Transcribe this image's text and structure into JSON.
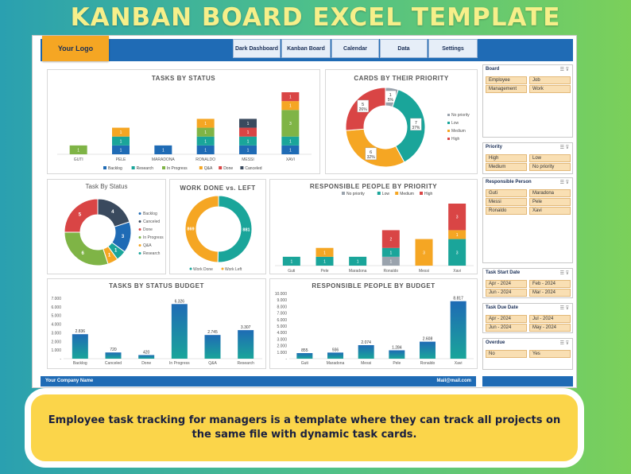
{
  "hero_title": "KANBAN BOARD EXCEL TEMPLATE",
  "logo": "Your Logo",
  "nav": [
    "Dark Dashboard",
    "Kanban Board",
    "Calendar",
    "Data",
    "Settings"
  ],
  "footer": {
    "company": "Your Company Name",
    "mail": "Mail@mail.com"
  },
  "caption": "Employee task tracking for managers is a template where they can track all projects on the same file with dynamic task cards.",
  "colors": {
    "Backlog": "#1f6bb5",
    "Research": "#1aa59a",
    "In Progress": "#7fb446",
    "Q&A": "#f5a623",
    "Done": "#d94545",
    "Canceled": "#3a4a5e",
    "No priority": "#9aa3ad",
    "Low": "#1aa59a",
    "Medium": "#f5a623",
    "High": "#d94545"
  },
  "slicers": [
    {
      "title": "Board",
      "items": [
        "Employee",
        "Job",
        "Management",
        "Work"
      ]
    },
    {
      "title": "Priority",
      "items": [
        "High",
        "Low",
        "Medium",
        "No priority"
      ]
    },
    {
      "title": "Responsible Person",
      "items": [
        "Guti",
        "Maradona",
        "Messi",
        "Pele",
        "Ronaldo",
        "Xavi"
      ]
    },
    {
      "title": "Task Start Date",
      "items": [
        "Apr - 2024",
        "Feb - 2024",
        "Jun - 2024",
        "Mar - 2024"
      ]
    },
    {
      "title": "Task Due Date",
      "items": [
        "Apr - 2024",
        "Jul - 2024",
        "Jun - 2024",
        "May - 2024"
      ]
    },
    {
      "title": "Overdue",
      "items": [
        "No",
        "Yes"
      ]
    }
  ],
  "chart_data": [
    {
      "id": "tasks-by-status",
      "type": "bar",
      "stacked": true,
      "title": "TASKS BY STATUS",
      "categories": [
        "GUTI",
        "PELE",
        "MARADONA",
        "RONALDO",
        "MESSI",
        "XAVI"
      ],
      "series": [
        {
          "name": "Backlog",
          "values": [
            0,
            1,
            1,
            1,
            1,
            1
          ]
        },
        {
          "name": "Research",
          "values": [
            0,
            1,
            0,
            1,
            1,
            1
          ]
        },
        {
          "name": "In Progress",
          "values": [
            1,
            0,
            0,
            1,
            0,
            3
          ]
        },
        {
          "name": "Q&A",
          "values": [
            0,
            1,
            0,
            1,
            0,
            1
          ]
        },
        {
          "name": "Done",
          "values": [
            0,
            0,
            0,
            0,
            1,
            1
          ]
        },
        {
          "name": "Canceled",
          "values": [
            0,
            0,
            0,
            0,
            1,
            0
          ]
        }
      ],
      "legend": "bottom"
    },
    {
      "id": "cards-by-priority",
      "type": "pie",
      "donut": true,
      "title": "CARDS BY THEIR PRIORITY",
      "slices": [
        {
          "name": "No priority",
          "value": 1,
          "label": "1",
          "pct": "5%"
        },
        {
          "name": "Low",
          "value": 7,
          "label": "7",
          "pct": "37%"
        },
        {
          "name": "Medium",
          "value": 6,
          "label": "6",
          "pct": "32%"
        },
        {
          "name": "High",
          "value": 5,
          "label": "5",
          "pct": "26%"
        }
      ],
      "legend": "right"
    },
    {
      "id": "task-by-status-donut",
      "type": "pie",
      "donut": true,
      "title": "Task By Status",
      "slices": [
        {
          "name": "Backlog",
          "value": 3,
          "label": "3"
        },
        {
          "name": "Canceled",
          "value": 4,
          "label": "4"
        },
        {
          "name": "Done",
          "value": 5,
          "label": "5"
        },
        {
          "name": "In Progress",
          "value": 6,
          "label": "6"
        },
        {
          "name": "Q&A",
          "value": 1,
          "label": "1"
        },
        {
          "name": "Research",
          "value": 1,
          "label": "1"
        }
      ],
      "legend_items": [
        "Backlog",
        "Canceled",
        "Done",
        "In Progress",
        "Q&A",
        "Research"
      ],
      "legend": "right"
    },
    {
      "id": "work-done-vs-left",
      "type": "pie",
      "donut": true,
      "title": "WORK DONE vs. LEFT",
      "slices": [
        {
          "name": "Work Done",
          "value": 881,
          "label": "881"
        },
        {
          "name": "Work Left",
          "value": 869,
          "label": "869"
        }
      ],
      "colors": [
        "#1aa59a",
        "#f5a623"
      ],
      "legend": "bottom"
    },
    {
      "id": "responsible-by-priority",
      "type": "bar",
      "stacked": true,
      "title": "RESPONSIBLE PEOPLE BY PRIORITY",
      "categories": [
        "Guti",
        "Pele",
        "Maradona",
        "Ronaldo",
        "Messi",
        "Xavi"
      ],
      "series": [
        {
          "name": "No priority",
          "values": [
            0,
            0,
            0,
            1,
            0,
            0
          ]
        },
        {
          "name": "Low",
          "values": [
            1,
            1,
            1,
            1,
            0,
            3
          ]
        },
        {
          "name": "Medium",
          "values": [
            0,
            1,
            0,
            0,
            3,
            1
          ]
        },
        {
          "name": "High",
          "values": [
            0,
            0,
            0,
            2,
            0,
            3
          ]
        }
      ],
      "legend": "top"
    },
    {
      "id": "tasks-by-status-budget",
      "type": "bar",
      "title": "TASKS BY STATUS BUDGET",
      "categories": [
        "Backlog",
        "Canceled",
        "Done",
        "In Progress",
        "Q&A",
        "Research"
      ],
      "values": [
        2836,
        720,
        420,
        6326,
        2745,
        3307
      ],
      "value_labels": [
        "2.836",
        "720",
        "420",
        "6.326",
        "2.745",
        "3.307"
      ],
      "ylim": [
        0,
        7000
      ],
      "yticks": [
        "-",
        "1.000",
        "2.000",
        "3.000",
        "4.000",
        "5.000",
        "6.000",
        "7.000"
      ]
    },
    {
      "id": "responsible-by-budget",
      "type": "bar",
      "title": "RESPONSIBLE PEOPLE BY BUDGET",
      "categories": [
        "Guti",
        "Maradona",
        "Messi",
        "Pele",
        "Ronaldo",
        "Xavi"
      ],
      "values": [
        855,
        936,
        2074,
        1284,
        2608,
        8817
      ],
      "value_labels": [
        "855",
        "936",
        "2.074",
        "1.284",
        "2.608",
        "8.817"
      ],
      "ylim": [
        0,
        10000
      ],
      "yticks": [
        "-",
        "1.000",
        "2.000",
        "3.000",
        "4.000",
        "5.000",
        "6.000",
        "7.000",
        "8.000",
        "9.000",
        "10.000"
      ]
    }
  ]
}
